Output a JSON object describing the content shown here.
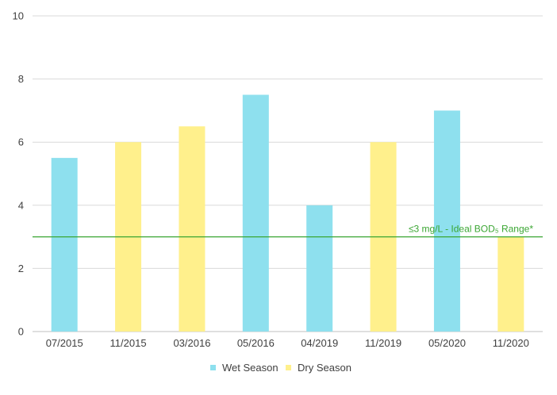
{
  "chart_data": {
    "type": "bar",
    "categories": [
      "07/2015",
      "11/2015",
      "03/2016",
      "05/2016",
      "04/2019",
      "11/2019",
      "05/2020",
      "11/2020"
    ],
    "values": [
      5.5,
      6,
      6.5,
      7.5,
      4,
      6,
      7,
      3
    ],
    "season": [
      "Wet Season",
      "Dry Season",
      "Dry Season",
      "Wet Season",
      "Wet Season",
      "Dry Season",
      "Wet Season",
      "Dry Season"
    ],
    "series": [
      {
        "name": "Wet Season",
        "color": "#8ee0ee"
      },
      {
        "name": "Dry Season",
        "color": "#fff08c"
      }
    ],
    "ylim": [
      0,
      10
    ],
    "yticks": [
      0,
      2,
      4,
      6,
      8,
      10
    ],
    "grid": true,
    "legend_position": "bottom",
    "reference_line": {
      "value": 3,
      "label": "≤3 mg/L - Ideal BOD₅ Range*",
      "color": "#3aa632"
    }
  }
}
